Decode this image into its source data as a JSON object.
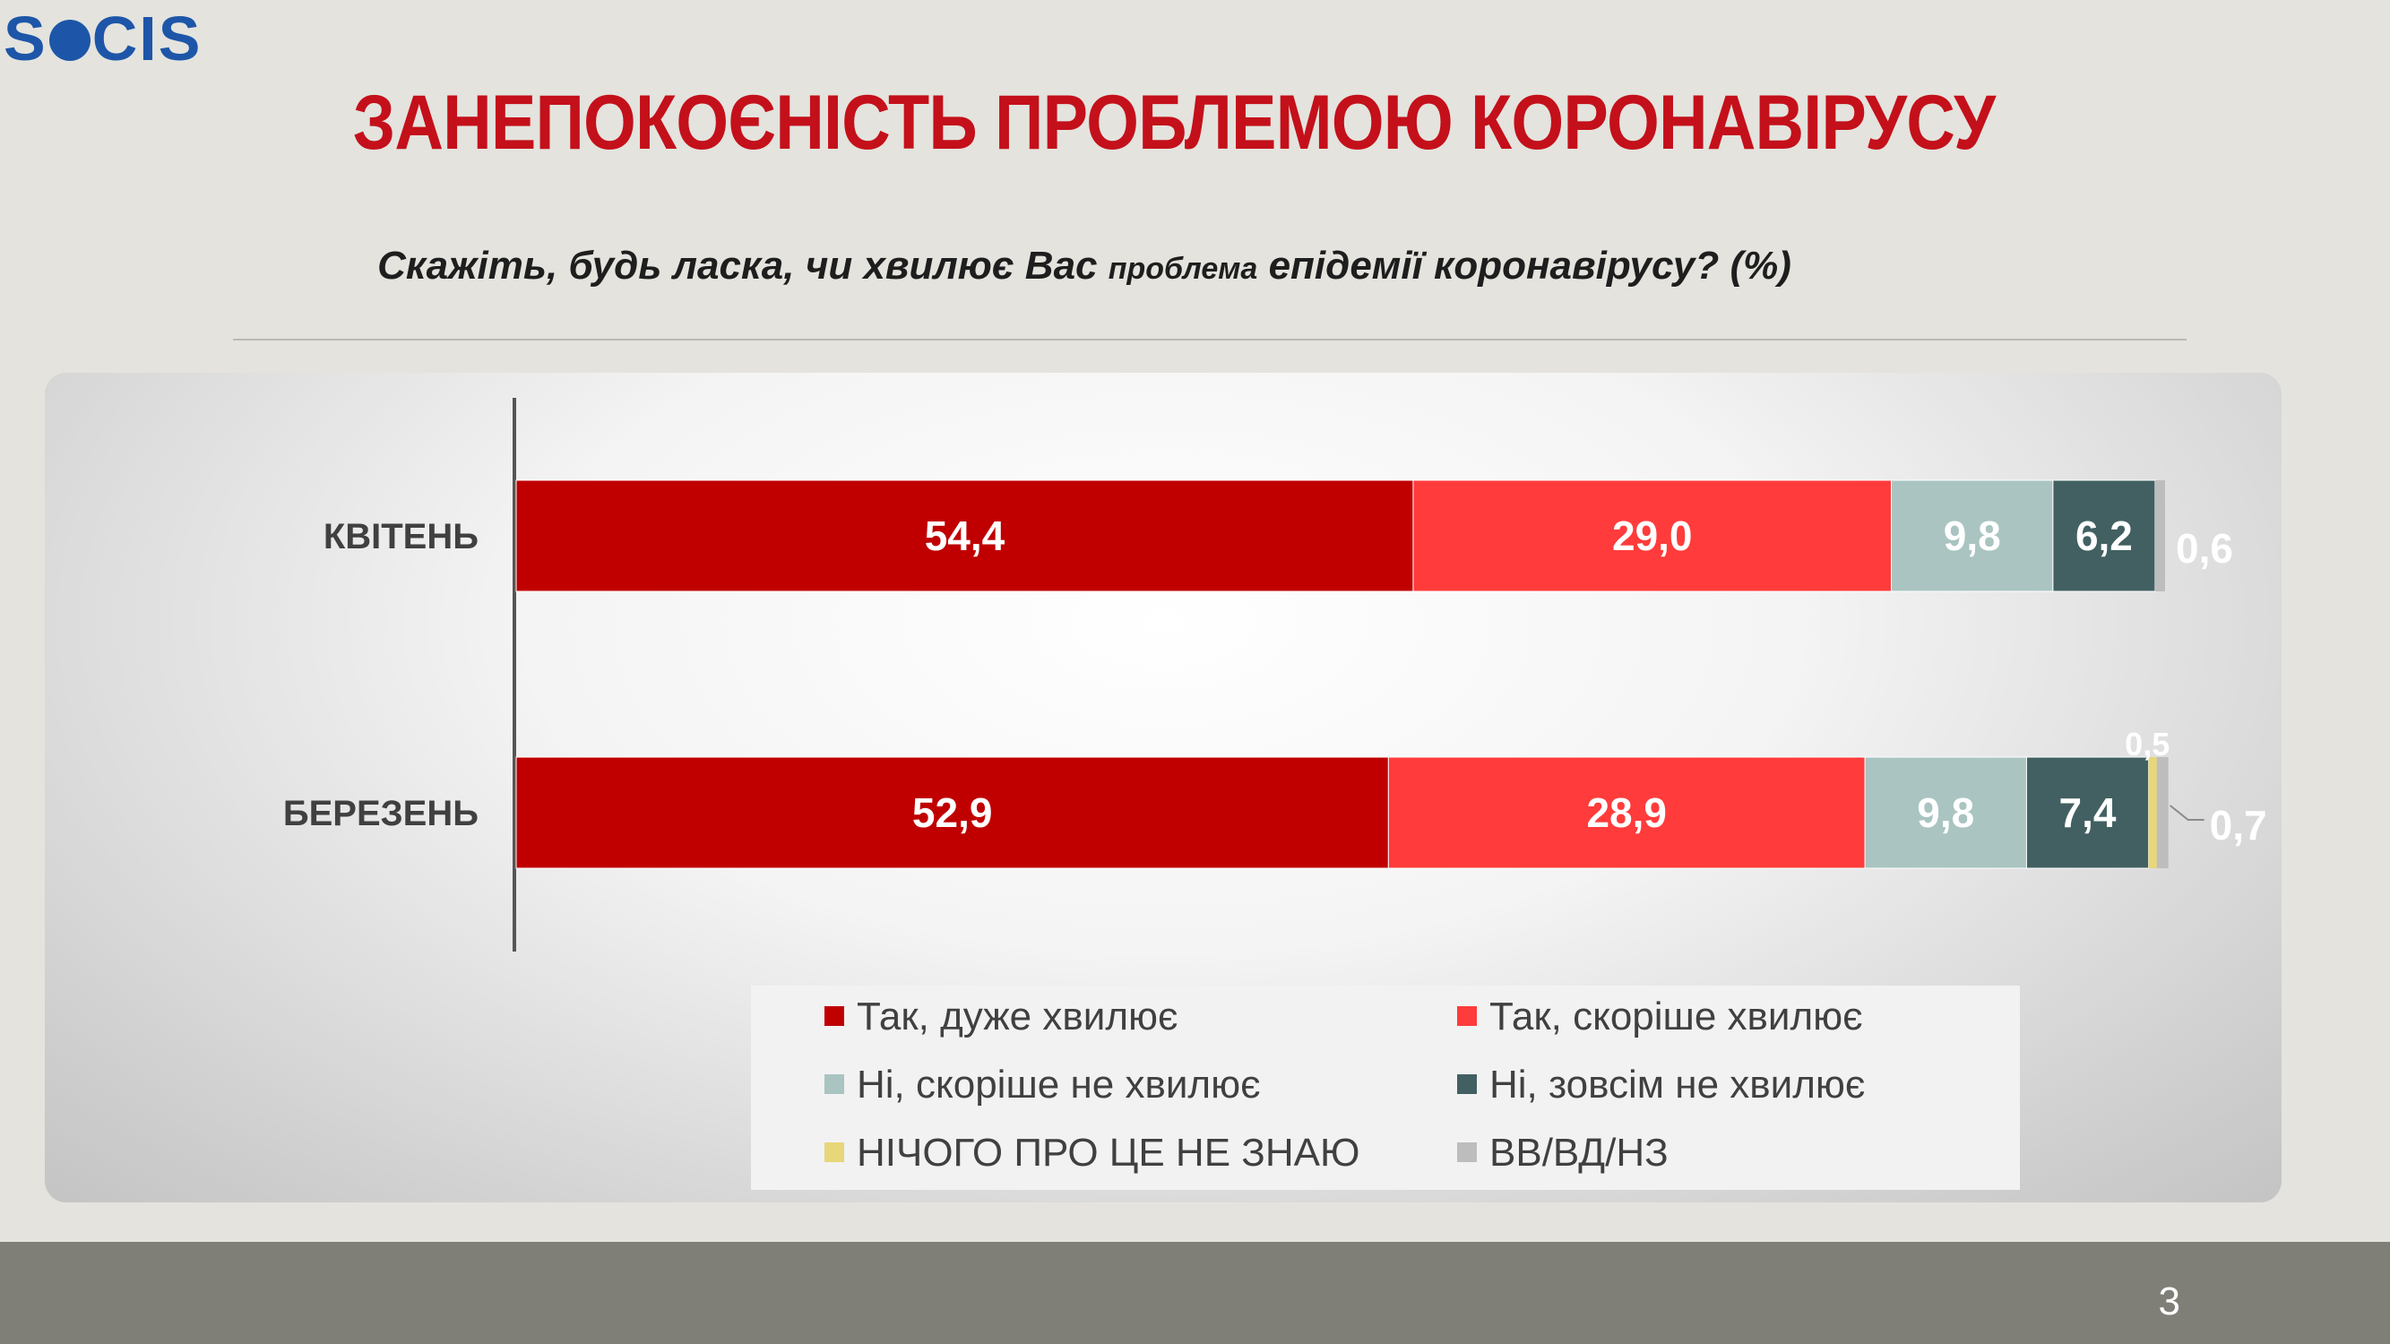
{
  "logo": {
    "text_before": "S",
    "text_after": "CIS"
  },
  "title": "ЗАНЕПОКОЄНІСТЬ ПРОБЛЕМОЮ КОРОНАВІРУСУ",
  "subtitle": {
    "part1": "Скажіть, будь ласка, чи хвилює Вас ",
    "part2": "проблема",
    "part3": " епідемії коронавірусу? (%)"
  },
  "page_number": "3",
  "colors": [
    "#c00000",
    "#ff3b3b",
    "#a9c4c1",
    "#426061",
    "#e8d67a",
    "#bdbdbd"
  ],
  "chart_data": {
    "type": "bar",
    "orientation": "horizontal",
    "stacked": true,
    "categories": [
      "КВІТЕНЬ",
      "БЕРЕЗЕНЬ"
    ],
    "series": [
      {
        "name": "Так, дуже хвилює",
        "values": [
          54.4,
          52.9
        ],
        "labels": [
          "54,4",
          "52,9"
        ]
      },
      {
        "name": "Так, скоріше хвилює",
        "values": [
          29.0,
          28.9
        ],
        "labels": [
          "29,0",
          "28,9"
        ]
      },
      {
        "name": "Ні, скоріше не хвилює",
        "values": [
          9.8,
          9.8
        ],
        "labels": [
          "9,8",
          "9,8"
        ]
      },
      {
        "name": "Ні, зовсім не хвилює",
        "values": [
          6.2,
          7.4
        ],
        "labels": [
          "6,2",
          "7,4"
        ]
      },
      {
        "name": "НІЧОГО ПРО ЦЕ НЕ ЗНАЮ",
        "values": [
          0,
          0.5
        ],
        "labels": [
          "",
          "0,5"
        ]
      },
      {
        "name": "ВВ/ВД/НЗ",
        "values": [
          0.6,
          0.7
        ],
        "labels": [
          "0,6",
          "0,7"
        ]
      }
    ],
    "xlim": [
      0,
      100
    ],
    "legend_position": "bottom",
    "grid": false
  }
}
